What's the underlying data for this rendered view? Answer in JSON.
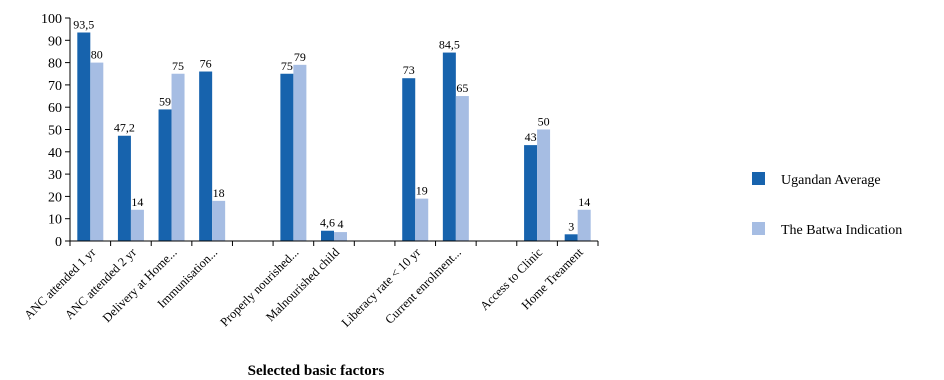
{
  "chart_data": {
    "type": "bar",
    "xlabel": "Selected basic factors",
    "ylim": [
      0,
      100
    ],
    "yticks": [
      0,
      10,
      20,
      30,
      40,
      50,
      60,
      70,
      80,
      90,
      100
    ],
    "categories": [
      "ANC attended 1 yr",
      "ANC attended 2 yr",
      "Delivery at Home...",
      "Immunisation...",
      "",
      "Properly nourished...",
      "Malnourished child",
      "",
      "Liberacy rate < 10 yr",
      "Current enrolment...",
      "",
      "Access to Clinic",
      "Home Treament"
    ],
    "series": [
      {
        "name": "Ugandan Average",
        "color": "#1763ad",
        "values": [
          93.5,
          47.2,
          59,
          76,
          null,
          75,
          4.6,
          null,
          73,
          84.5,
          null,
          43,
          3
        ],
        "labels": [
          "93,5",
          "47,2",
          "59",
          "76",
          "",
          "75",
          "4,6",
          "",
          "73",
          "84,5",
          "",
          "43",
          "3"
        ]
      },
      {
        "name": "The Batwa Indication",
        "color": "#a6bde3",
        "values": [
          80,
          14,
          75,
          18,
          null,
          79,
          4,
          null,
          19,
          65,
          null,
          50,
          14
        ],
        "labels": [
          "80",
          "14",
          "75",
          "18",
          "",
          "79",
          "4",
          "",
          "19",
          "65",
          "",
          "50",
          "14"
        ]
      }
    ],
    "legend": "right"
  }
}
